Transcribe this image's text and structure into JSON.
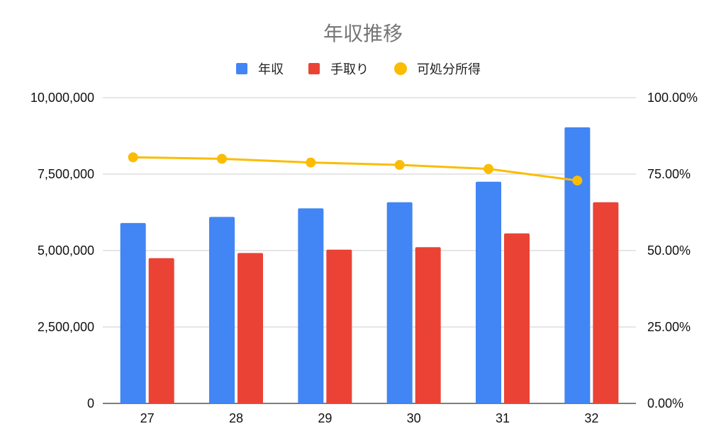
{
  "chart_data": {
    "type": "bar",
    "title": "年収推移",
    "categories": [
      "27",
      "28",
      "29",
      "30",
      "31",
      "32"
    ],
    "series": [
      {
        "name": "年収",
        "kind": "bar",
        "axis": "left",
        "color": "#4285F4",
        "values": [
          5900000,
          6100000,
          6380000,
          6580000,
          7250000,
          9030000
        ]
      },
      {
        "name": "手取り",
        "kind": "bar",
        "axis": "left",
        "color": "#EA4335",
        "values": [
          4750000,
          4920000,
          5030000,
          5110000,
          5560000,
          6580000
        ]
      },
      {
        "name": "可処分所得",
        "kind": "line",
        "axis": "right",
        "color": "#FBBC04",
        "values": [
          80.5,
          80.0,
          78.8,
          78.0,
          76.7,
          72.9
        ]
      }
    ],
    "y_left": {
      "ylim": [
        0,
        10000000
      ],
      "ticks": [
        0,
        2500000,
        5000000,
        7500000,
        10000000
      ],
      "tick_labels": [
        "0",
        "2,500,000",
        "5,000,000",
        "7,500,000",
        "10,000,000"
      ]
    },
    "y_right": {
      "ylim": [
        0,
        100
      ],
      "tick_labels": [
        "0.00%",
        "25.00%",
        "50.00%",
        "75.00%",
        "100.00%"
      ]
    },
    "grid": true,
    "legend_position": "top"
  }
}
